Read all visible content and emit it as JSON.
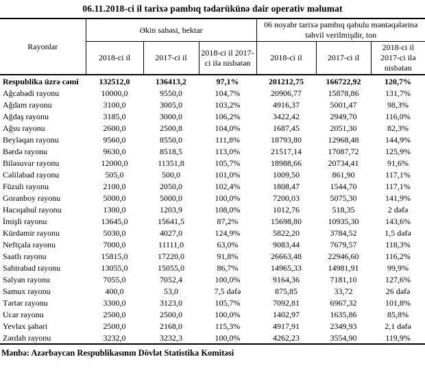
{
  "title": "06.11.2018-ci il tarixə pambıq tədarükünə dair operativ məlumat",
  "source": "Mənbə: Azərbaycan Respublikasının Dövlət Statistika Komitəsi",
  "table": {
    "corner_header": "Rayonlar",
    "group_headers": [
      "Əkin sahəsi, hektar",
      "06 noyabr tarixə pambıq qəbulu məntəqələrinə təhvil verilmişdir, ton"
    ],
    "sub_headers": [
      "2018-ci il",
      "2017-ci il",
      "2018-ci il 2017-ci ilə nisbətən",
      "2018-ci il",
      "2017-ci il",
      "2018-ci il 2017-ci ilə nisbətən"
    ],
    "total_row": {
      "label": "Respublika üzrə cəmi",
      "values": [
        "132512,0",
        "136413,2",
        "97,1%",
        "201212,75",
        "166722,92",
        "120,7%"
      ]
    },
    "rows": [
      {
        "label": "Ağcabədi rayonu",
        "values": [
          "10000,0",
          "9550,0",
          "104,7%",
          "20906,77",
          "15878,86",
          "131,7%"
        ]
      },
      {
        "label": "Ağdam rayonu",
        "values": [
          "3100,0",
          "3005,0",
          "103,2%",
          "4916,37",
          "5001,47",
          "98,3%"
        ]
      },
      {
        "label": "Ağdaş rayonu",
        "values": [
          "3185,0",
          "3000,0",
          "106,2%",
          "3422,42",
          "2949,70",
          "116,0%"
        ]
      },
      {
        "label": "Ağsu rayonu",
        "values": [
          "2600,0",
          "2500,8",
          "104,0%",
          "1687,45",
          "2051,30",
          "82,3%"
        ]
      },
      {
        "label": "Beyləqan rayonu",
        "values": [
          "9560,0",
          "8550,0",
          "111,8%",
          "18793,80",
          "12968,48",
          "144,9%"
        ]
      },
      {
        "label": "Bərdə rayonu",
        "values": [
          "9630,0",
          "8518,5",
          "113,0%",
          "21517,14",
          "17087,72",
          "125,9%"
        ]
      },
      {
        "label": "Biləsuvar rayonu",
        "values": [
          "12000,0",
          "11351,8",
          "105,7%",
          "18988,66",
          "20734,41",
          "91,6%"
        ]
      },
      {
        "label": "Cəlilabad rayonu",
        "values": [
          "505,0",
          "500,0",
          "101,0%",
          "1009,50",
          "861,90",
          "117,1%"
        ]
      },
      {
        "label": "Füzuli rayonu",
        "values": [
          "2100,0",
          "2050,0",
          "102,4%",
          "1808,47",
          "1544,70",
          "117,1%"
        ]
      },
      {
        "label": "Goranboy rayonu",
        "values": [
          "5000,0",
          "5000,0",
          "100,0%",
          "7200,03",
          "5075,30",
          "141,9%"
        ]
      },
      {
        "label": "Hacıqabul rayonu",
        "values": [
          "1300,0",
          "1203,9",
          "108,0%",
          "1012,76",
          "518,35",
          "2 dəfə"
        ]
      },
      {
        "label": "İmişli rayonu",
        "values": [
          "13645,0",
          "15641,5",
          "87,2%",
          "15698,80",
          "10935,30",
          "143,6%"
        ]
      },
      {
        "label": "Kürdəmir rayonu",
        "values": [
          "5030,0",
          "4027,0",
          "124,9%",
          "5822,20",
          "3784,52",
          "1,5 dəfə"
        ]
      },
      {
        "label": "Neftçala rayonu",
        "values": [
          "7000,0",
          "11111,0",
          "63,0%",
          "9083,44",
          "7679,57",
          "118,3%"
        ]
      },
      {
        "label": "Saatlı rayonu",
        "values": [
          "15815,0",
          "17220,0",
          "91,8%",
          "26663,48",
          "22946,60",
          "116,2%"
        ]
      },
      {
        "label": "Sabirabad rayonu",
        "values": [
          "13055,0",
          "15055,0",
          "86,7%",
          "14965,33",
          "14981,91",
          "99,9%"
        ]
      },
      {
        "label": "Salyan rayonu",
        "values": [
          "7055,0",
          "7052,4",
          "100,0%",
          "9164,36",
          "7181,10",
          "127,6%"
        ]
      },
      {
        "label": "Samux rayonu",
        "values": [
          "400,0",
          "53,0",
          "7,5 dəfə",
          "875,85",
          "33,72",
          "26 dəfə"
        ]
      },
      {
        "label": "Tərtər rayonu",
        "values": [
          "3300,0",
          "3123,0",
          "105,7%",
          "7092,81",
          "6967,32",
          "101,8%"
        ]
      },
      {
        "label": "Ucar rayonu",
        "values": [
          "2500,0",
          "2500,0",
          "100,0%",
          "1402,97",
          "1635,86",
          "85,8%"
        ]
      },
      {
        "label": "Yevlax şəhəri",
        "values": [
          "2500,0",
          "2168,0",
          "115,3%",
          "4917,91",
          "2349,93",
          "2,1 dəfə"
        ]
      },
      {
        "label": "Zərdab rayonu",
        "values": [
          "3232,0",
          "3232,3",
          "100,0%",
          "4262,23",
          "3554,90",
          "119,9%"
        ]
      }
    ]
  }
}
